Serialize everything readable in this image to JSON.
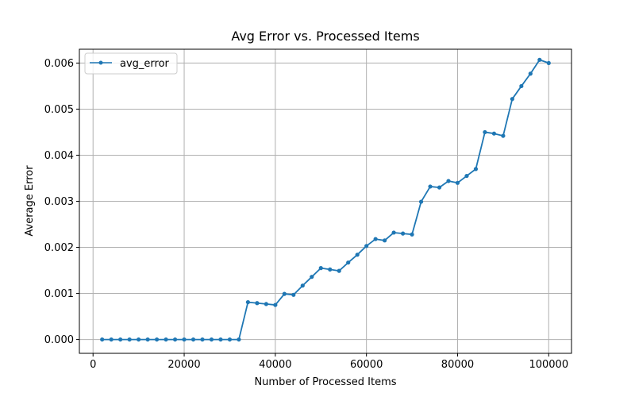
{
  "chart_data": {
    "type": "line",
    "title": "Avg Error vs. Processed Items",
    "xlabel": "Number of Processed Items",
    "ylabel": "Average Error",
    "xlim": [
      -3000,
      105000
    ],
    "ylim": [
      -0.0003,
      0.0063
    ],
    "xticks": [
      0,
      20000,
      40000,
      60000,
      80000,
      100000
    ],
    "xtick_labels": [
      "0",
      "20000",
      "40000",
      "60000",
      "80000",
      "100000"
    ],
    "yticks": [
      0.0,
      0.001,
      0.002,
      0.003,
      0.004,
      0.005,
      0.006
    ],
    "ytick_labels": [
      "0.000",
      "0.001",
      "0.002",
      "0.003",
      "0.004",
      "0.005",
      "0.006"
    ],
    "grid": true,
    "legend": "upper-left",
    "series": [
      {
        "name": "avg_error",
        "color": "#1f77b4",
        "marker": "circle",
        "x": [
          2000,
          4000,
          6000,
          8000,
          10000,
          12000,
          14000,
          16000,
          18000,
          20000,
          22000,
          24000,
          26000,
          28000,
          30000,
          32000,
          34000,
          36000,
          38000,
          40000,
          42000,
          44000,
          46000,
          48000,
          50000,
          52000,
          54000,
          56000,
          58000,
          60000,
          62000,
          64000,
          66000,
          68000,
          70000,
          72000,
          74000,
          76000,
          78000,
          80000,
          82000,
          84000,
          86000,
          88000,
          90000,
          92000,
          94000,
          96000,
          98000,
          100000
        ],
        "y": [
          0.0,
          0.0,
          0.0,
          0.0,
          0.0,
          0.0,
          0.0,
          0.0,
          0.0,
          0.0,
          0.0,
          0.0,
          0.0,
          0.0,
          0.0,
          0.0,
          0.00081,
          0.00079,
          0.00077,
          0.00075,
          0.00099,
          0.00097,
          0.00117,
          0.00136,
          0.00155,
          0.00152,
          0.00149,
          0.00167,
          0.00184,
          0.00203,
          0.00218,
          0.00215,
          0.00232,
          0.0023,
          0.00228,
          0.00299,
          0.00332,
          0.0033,
          0.00344,
          0.0034,
          0.00355,
          0.0037,
          0.0045,
          0.00447,
          0.00442,
          0.00522,
          0.0055,
          0.00577,
          0.00607,
          0.006
        ]
      }
    ]
  }
}
